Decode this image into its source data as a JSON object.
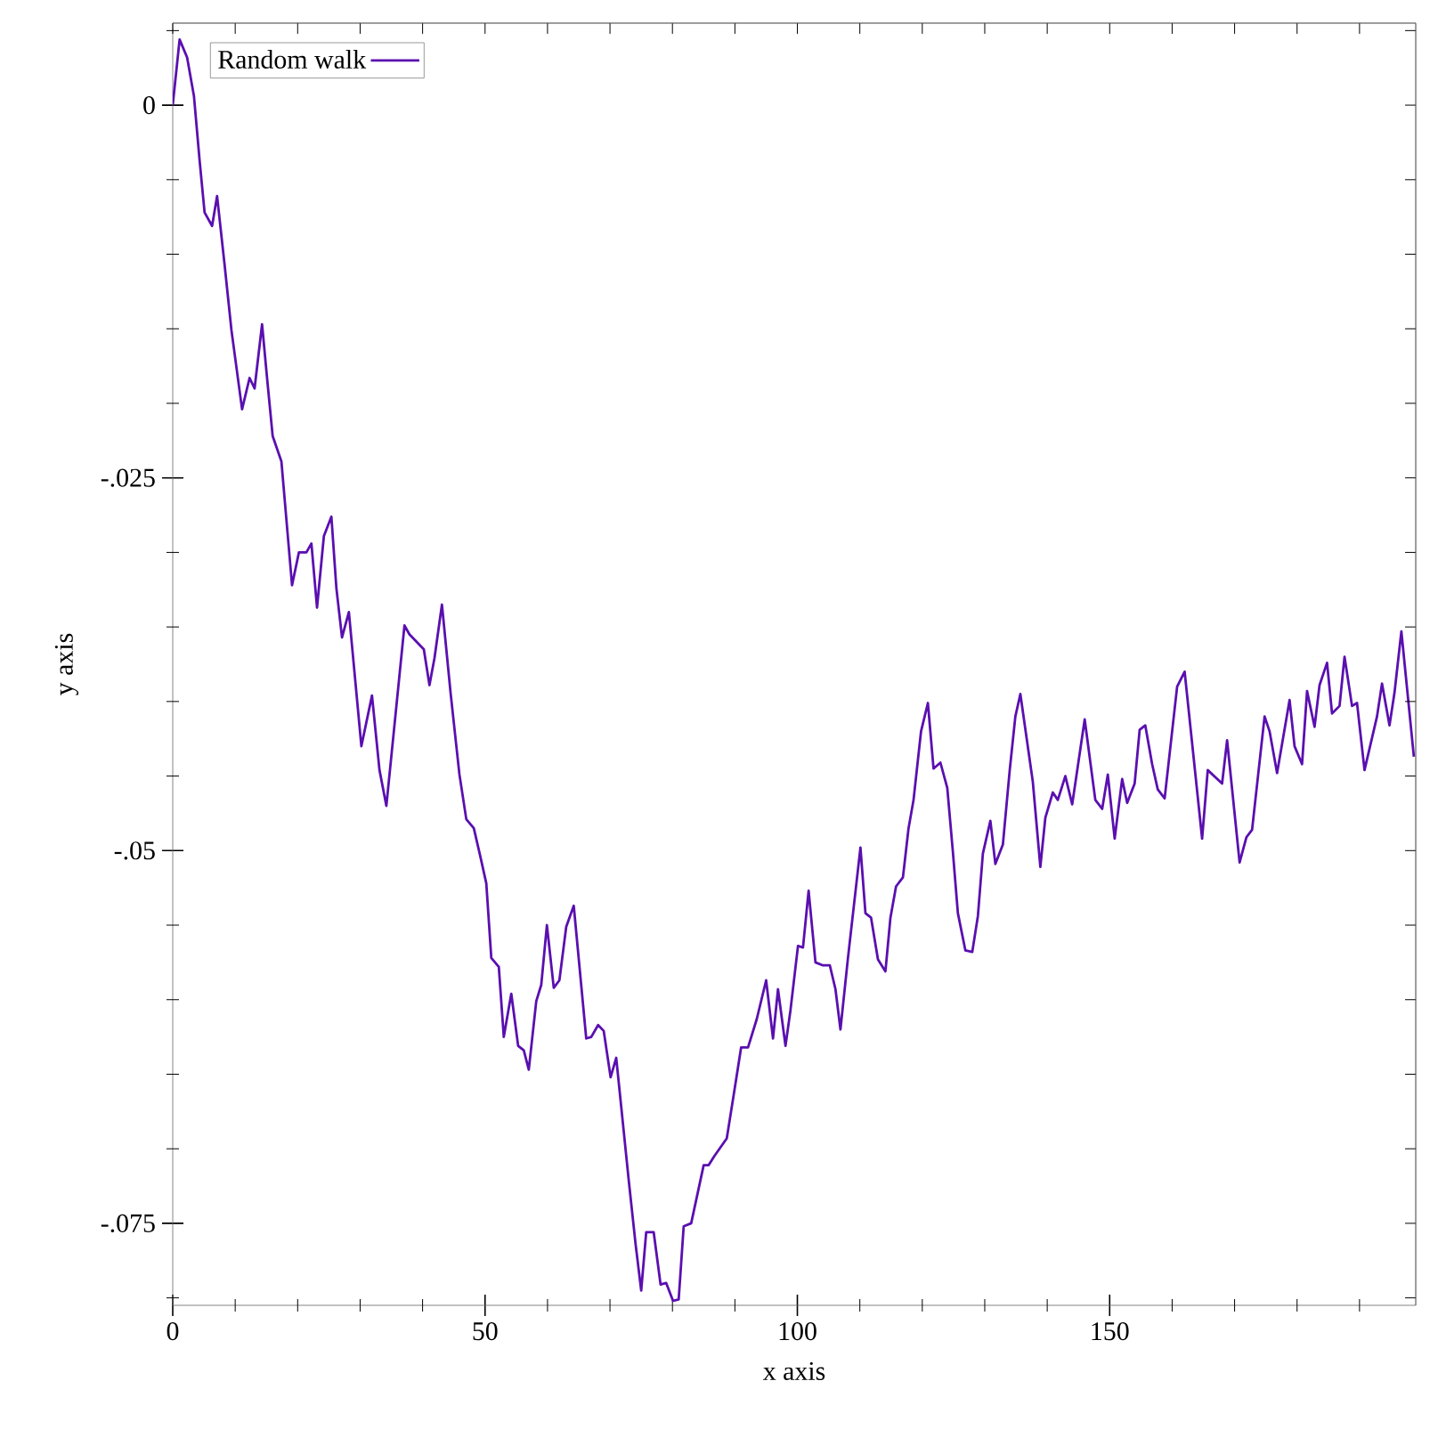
{
  "chart_data": {
    "type": "line",
    "xlabel": "x axis",
    "ylabel": "y axis",
    "legend": "top left",
    "marker": "none",
    "line_style": "solid",
    "xlim": [
      0,
      199
    ],
    "ylim": [
      -0.0805,
      0.0055
    ],
    "xticks": [
      0,
      {
        "value": 10,
        "label": null
      },
      {
        "value": 20,
        "label": null
      },
      {
        "value": 30,
        "label": null
      },
      {
        "value": 40,
        "label": null
      },
      50,
      {
        "value": 60,
        "label": null
      },
      {
        "value": 70,
        "label": null
      },
      {
        "value": 80,
        "label": null
      },
      {
        "value": 90,
        "label": null
      },
      100,
      {
        "value": 110,
        "label": null
      },
      {
        "value": 120,
        "label": null
      },
      {
        "value": 130,
        "label": null
      },
      {
        "value": 140,
        "label": null
      },
      150,
      {
        "value": 160,
        "label": null
      },
      {
        "value": 170,
        "label": null
      },
      {
        "value": 180,
        "label": null
      },
      {
        "value": 190,
        "label": null
      }
    ],
    "yticks": [
      {
        "value": -0.08,
        "label": null
      },
      {
        "value": -0.075,
        "label": "-.075"
      },
      {
        "value": -0.07,
        "label": null
      },
      {
        "value": -0.065,
        "label": null
      },
      {
        "value": -0.06,
        "label": null
      },
      {
        "value": -0.055,
        "label": null
      },
      {
        "value": -0.05,
        "label": "-.05"
      },
      {
        "value": -0.045,
        "label": null
      },
      {
        "value": -0.04,
        "label": null
      },
      {
        "value": -0.035,
        "label": null
      },
      {
        "value": -0.03,
        "label": null
      },
      {
        "value": -0.025,
        "label": "-.025"
      },
      {
        "value": -0.02,
        "label": null
      },
      {
        "value": -0.015,
        "label": null
      },
      {
        "value": -0.01,
        "label": null
      },
      {
        "value": -0.005,
        "label": null
      },
      {
        "value": 0,
        "label": "0"
      },
      {
        "value": 0.005,
        "label": null
      }
    ],
    "series": [
      {
        "name": "Random walk",
        "color": "#5a0fb0",
        "x": [
          0,
          1.1,
          2.3,
          3.4,
          4.3,
          5.1,
          6.3,
          7.1,
          8.3,
          9.4,
          11.1,
          12.3,
          13.1,
          14.3,
          15.1,
          16,
          17.4,
          19.1,
          20.2,
          21.4,
          22.2,
          23.1,
          24.2,
          25.4,
          26.2,
          27.1,
          28.2,
          30.2,
          31.9,
          33.1,
          34.2,
          37.1,
          37.9,
          40.2,
          41.1,
          41.9,
          43.1,
          44.5,
          45.9,
          47,
          48.2,
          49.3,
          50.2,
          51,
          52.2,
          53,
          54.2,
          55.3,
          56.2,
          57,
          58.2,
          59,
          59.9,
          61,
          61.9,
          63,
          64.2,
          66.2,
          67,
          68.1,
          69,
          70.1,
          71,
          73,
          74.1,
          75,
          75.8,
          77,
          78.1,
          79,
          80.1,
          81,
          81.8,
          83,
          85,
          85.8,
          86.7,
          88.7,
          89.8,
          91,
          92.1,
          93.5,
          95,
          96.1,
          96.9,
          98.1,
          98.9,
          100.1,
          100.9,
          101.8,
          102.9,
          104.1,
          105.2,
          106.1,
          106.9,
          108.1,
          110.1,
          110.9,
          111.8,
          112.9,
          114.1,
          114.9,
          115.8,
          116.9,
          117.8,
          118.6,
          119.8,
          120.9,
          121.8,
          122.9,
          124,
          124.9,
          125.7,
          126.9,
          128,
          128.9,
          129.7,
          130.9,
          131.7,
          132.9,
          134,
          134.9,
          135.7,
          137.7,
          138.9,
          139.7,
          140.9,
          141.7,
          142.9,
          144,
          146,
          147.7,
          148.8,
          149.7,
          150.8,
          152,
          152.8,
          154,
          154.8,
          155.7,
          156.8,
          157.7,
          158.8,
          160.8,
          162,
          164.8,
          165.7,
          168,
          168.8,
          170.8,
          171.9,
          172.8,
          174.8,
          175.6,
          176.8,
          178.8,
          179.6,
          180.8,
          181.6,
          182.8,
          183.6,
          184.8,
          185.6,
          186.8,
          187.6,
          188.8,
          189.6,
          190.8,
          192.8,
          193.6,
          194.8,
          195.6,
          196.7,
          198.7
        ],
        "values": [
          0,
          0.0044,
          0.0032,
          0.0006,
          -0.0037,
          -0.0072,
          -0.0081,
          -0.0061,
          -0.0107,
          -0.0151,
          -0.0204,
          -0.0183,
          -0.019,
          -0.0147,
          -0.0183,
          -0.0222,
          -0.0239,
          -0.0322,
          -0.03,
          -0.03,
          -0.0294,
          -0.0337,
          -0.0289,
          -0.0276,
          -0.0324,
          -0.0357,
          -0.034,
          -0.043,
          -0.0396,
          -0.0446,
          -0.047,
          -0.0349,
          -0.0355,
          -0.0365,
          -0.0389,
          -0.0371,
          -0.0335,
          -0.0395,
          -0.0449,
          -0.0479,
          -0.0485,
          -0.0505,
          -0.0522,
          -0.0572,
          -0.0578,
          -0.0625,
          -0.0596,
          -0.0631,
          -0.0634,
          -0.0647,
          -0.0601,
          -0.059,
          -0.055,
          -0.0592,
          -0.0587,
          -0.0551,
          -0.0537,
          -0.0626,
          -0.0625,
          -0.0617,
          -0.0621,
          -0.0652,
          -0.0639,
          -0.0721,
          -0.0764,
          -0.0795,
          -0.0756,
          -0.0756,
          -0.0791,
          -0.079,
          -0.0802,
          -0.0801,
          -0.0752,
          -0.075,
          -0.0711,
          -0.0711,
          -0.0705,
          -0.0693,
          -0.0664,
          -0.0632,
          -0.0632,
          -0.0613,
          -0.0587,
          -0.0626,
          -0.0593,
          -0.0631,
          -0.0607,
          -0.0564,
          -0.0565,
          -0.0527,
          -0.0575,
          -0.0577,
          -0.0577,
          -0.0593,
          -0.062,
          -0.0572,
          -0.0498,
          -0.0542,
          -0.0545,
          -0.0573,
          -0.0581,
          -0.0545,
          -0.0524,
          -0.0518,
          -0.0485,
          -0.0466,
          -0.042,
          -0.0401,
          -0.0445,
          -0.0441,
          -0.0458,
          -0.0501,
          -0.0542,
          -0.0567,
          -0.0568,
          -0.0544,
          -0.0502,
          -0.048,
          -0.0509,
          -0.0496,
          -0.0446,
          -0.041,
          -0.0395,
          -0.0454,
          -0.0511,
          -0.0478,
          -0.0461,
          -0.0466,
          -0.045,
          -0.0469,
          -0.0412,
          -0.0466,
          -0.0472,
          -0.0449,
          -0.0492,
          -0.0452,
          -0.0468,
          -0.0455,
          -0.0419,
          -0.0416,
          -0.0442,
          -0.0459,
          -0.0465,
          -0.039,
          -0.038,
          -0.0492,
          -0.0446,
          -0.0455,
          -0.0426,
          -0.0508,
          -0.0491,
          -0.0486,
          -0.041,
          -0.042,
          -0.0448,
          -0.0399,
          -0.043,
          -0.0442,
          -0.0393,
          -0.0417,
          -0.0389,
          -0.0374,
          -0.0408,
          -0.0403,
          -0.037,
          -0.0403,
          -0.0401,
          -0.0446,
          -0.041,
          -0.0388,
          -0.0416,
          -0.0394,
          -0.0353,
          -0.0437
        ]
      }
    ]
  }
}
